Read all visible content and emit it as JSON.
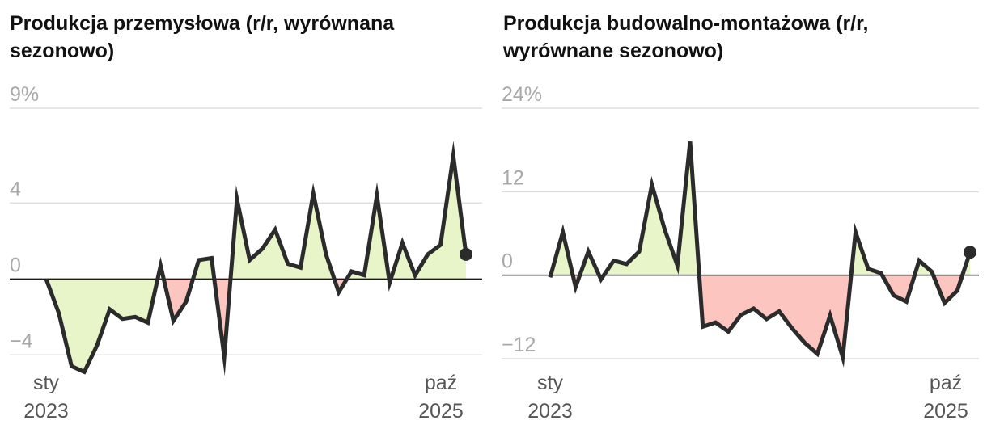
{
  "colors": {
    "line": "#2b2b2b",
    "positive_fill": "#e8f5c8",
    "negative_fill": "#fcc5c0",
    "grid": "#dddddd",
    "zero_line": "#1a1a1a",
    "tick_text": "#a8a8a8"
  },
  "chart_data": [
    {
      "type": "area",
      "title": "Produkcja przemysłowa (r/r, wyrównana sezonowo)",
      "title_line1": "Produkcja przemysłowa (r/r, wyrównana",
      "title_line2": "sezonowo)",
      "ylim": [
        -4.2,
        9
      ],
      "yticks": [
        {
          "value": 9,
          "label": "9%"
        },
        {
          "value": 4,
          "label": "4"
        },
        {
          "value": 0,
          "label": "0"
        },
        {
          "value": -4,
          "label": "−4"
        }
      ],
      "x_start": {
        "month": "sty",
        "year": "2023"
      },
      "x_end": {
        "month": "paź",
        "year": "2025"
      },
      "x": [
        "2023-01",
        "2023-02",
        "2023-03",
        "2023-04",
        "2023-05",
        "2023-06",
        "2023-07",
        "2023-08",
        "2023-09",
        "2023-10",
        "2023-11",
        "2023-12",
        "2024-01",
        "2024-02",
        "2024-03",
        "2024-04",
        "2024-05",
        "2024-06",
        "2024-07",
        "2024-08",
        "2024-09",
        "2024-10",
        "2024-11",
        "2024-12",
        "2025-01",
        "2025-02",
        "2025-03",
        "2025-04",
        "2025-05",
        "2025-06",
        "2025-07",
        "2025-08",
        "2025-09",
        "2025-10"
      ],
      "values": [
        0.0,
        -1.8,
        -4.6,
        -4.9,
        -3.5,
        -1.6,
        -2.1,
        -2.0,
        -2.3,
        0.7,
        -2.2,
        -1.2,
        1.0,
        1.1,
        -4.1,
        4.2,
        1.0,
        1.6,
        2.6,
        0.8,
        0.6,
        4.5,
        1.3,
        -0.7,
        0.4,
        0.2,
        4.4,
        -0.2,
        1.9,
        0.2,
        1.3,
        1.8,
        6.5,
        1.3
      ]
    },
    {
      "type": "area",
      "title": "Produkcja budowalno-montażowa (r/r, wyrównane sezonowo)",
      "title_line1": "Produkcja budowalno-montażowa (r/r,",
      "title_line2": "wyrównane sezonowo)",
      "ylim": [
        -12,
        24
      ],
      "yticks": [
        {
          "value": 24,
          "label": "24%"
        },
        {
          "value": 12,
          "label": "12"
        },
        {
          "value": 0,
          "label": "0"
        },
        {
          "value": -12,
          "label": "−12"
        }
      ],
      "x_start": {
        "month": "sty",
        "year": "2023"
      },
      "x_end": {
        "month": "paź",
        "year": "2025"
      },
      "x": [
        "2023-01",
        "2023-02",
        "2023-03",
        "2023-04",
        "2023-05",
        "2023-06",
        "2023-07",
        "2023-08",
        "2023-09",
        "2023-10",
        "2023-11",
        "2023-12",
        "2024-01",
        "2024-02",
        "2024-03",
        "2024-04",
        "2024-05",
        "2024-06",
        "2024-07",
        "2024-08",
        "2024-09",
        "2024-10",
        "2024-11",
        "2024-12",
        "2025-01",
        "2025-02",
        "2025-03",
        "2025-04",
        "2025-05",
        "2025-06",
        "2025-07",
        "2025-08",
        "2025-09",
        "2025-10"
      ],
      "values": [
        -0.3,
        6.2,
        -1.7,
        3.4,
        -0.6,
        2.1,
        1.6,
        3.4,
        13.0,
        6.6,
        1.4,
        19.2,
        -7.4,
        -6.8,
        -8.1,
        -5.7,
        -4.8,
        -6.3,
        -5.2,
        -7.6,
        -9.7,
        -11.3,
        -5.8,
        -11.8,
        6.2,
        0.9,
        0.3,
        -2.9,
        -3.8,
        2.1,
        0.5,
        -4.0,
        -2.2,
        3.3
      ]
    }
  ]
}
